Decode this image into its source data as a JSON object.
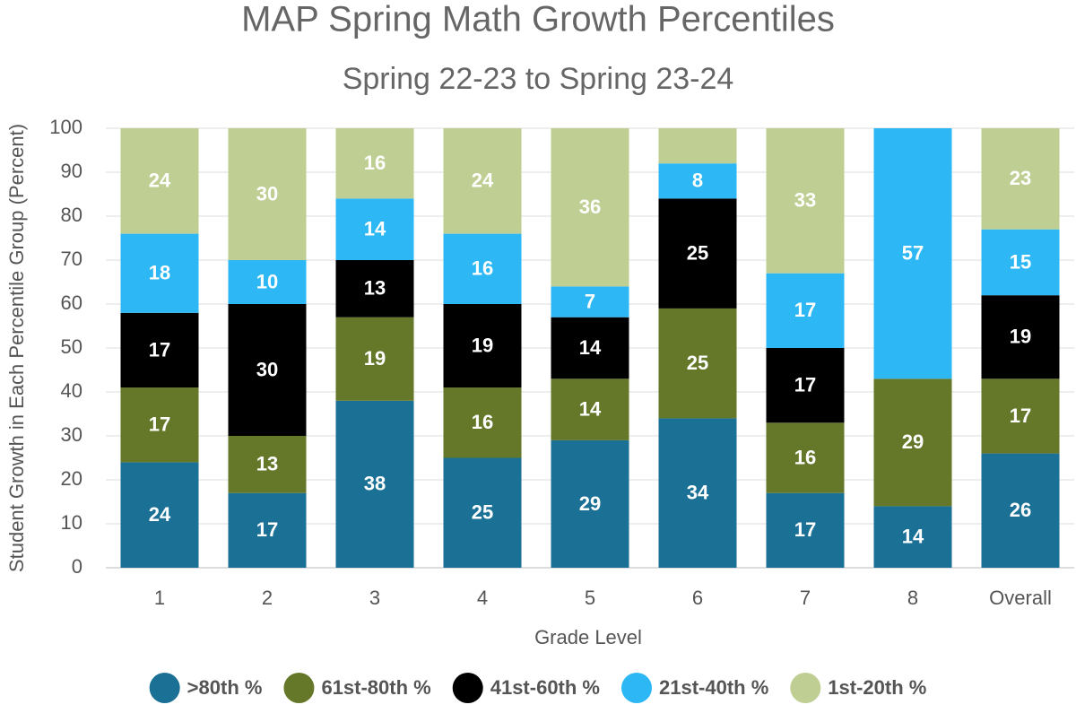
{
  "chart_data": {
    "type": "stacked_bar",
    "title": "MAP Spring Math Growth Percentiles",
    "subtitle": "Spring 22-23 to Spring 23-24",
    "x_label": "Grade Level",
    "y_label": "Student Growth in Each Percentile Group (Percent)",
    "categories": [
      "1",
      "2",
      "3",
      "4",
      "5",
      "6",
      "7",
      "8",
      "Overall"
    ],
    "series": [
      {
        "name": ">80th %",
        "color": "#1b7096",
        "values": [
          24,
          17,
          38,
          25,
          29,
          34,
          17,
          14,
          26
        ]
      },
      {
        "name": "61st-80th %",
        "color": "#65782a",
        "values": [
          17,
          13,
          19,
          16,
          14,
          25,
          16,
          29,
          17
        ]
      },
      {
        "name": "41st-60th %",
        "color": "#000000",
        "values": [
          17,
          30,
          13,
          19,
          14,
          25,
          17,
          null,
          19
        ]
      },
      {
        "name": "21st-40th %",
        "color": "#2db8f5",
        "values": [
          18,
          10,
          14,
          16,
          7,
          8,
          17,
          57,
          15
        ]
      },
      {
        "name": "1st-20th %",
        "color": "#bfcf93",
        "values": [
          24,
          30,
          16,
          24,
          36,
          8,
          33,
          null,
          23
        ],
        "value_labels": [
          "24",
          "30",
          "16",
          "24",
          "36",
          null,
          "33",
          null,
          "23"
        ]
      }
    ],
    "ylim": [
      0,
      100
    ],
    "yticks": [
      0,
      10,
      20,
      30,
      40,
      50,
      60,
      70,
      80,
      90,
      100
    ],
    "grid": true,
    "legend": "bottom"
  }
}
